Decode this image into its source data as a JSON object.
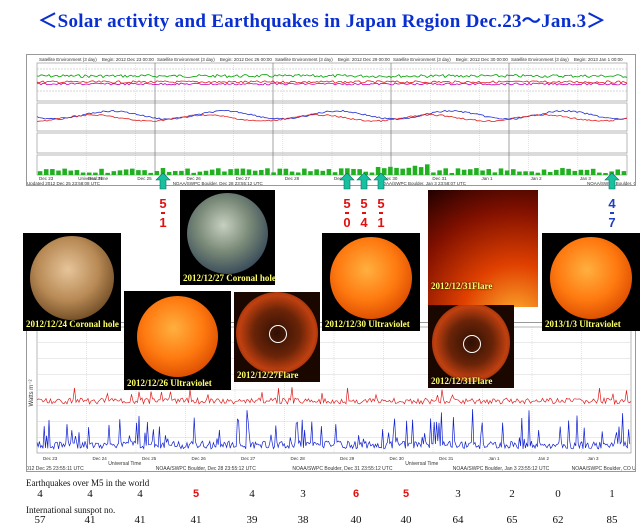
{
  "title": "＜Solar activity and Earthquakes  in Japan Region Dec.23～Jan.3＞",
  "top_chart": {
    "headers": [
      "Satellite Environment (3 day)",
      "Begin: 2012 Dec 23 00:00",
      "Satellite Environment (3 day)",
      "Begin: 2012 Dec 26 00:00",
      "Satellite Environment (3 day)",
      "Begin: 2012 Dec 29 00:00",
      "Satellite Environment (3 day)",
      "Begin: 2012 Dec 30 00:00",
      "Satellite Environment (3 day)",
      "Begin: 2013 Jan 1 00:00"
    ],
    "date_ticks": [
      "Dec 23",
      "Dec 24",
      "Dec 25",
      "Dec 26",
      "Dec 27",
      "Dec 28",
      "Dec 29",
      "Dec 30",
      "Dec 31",
      "Jan 1",
      "Jan 2",
      "Jan 3"
    ],
    "footer_left": "Updated 2012 Dec 25 23:58:08 UTC",
    "footer_mid1": "NOAA/SWPC Boulder, CO USA",
    "footer_mid2": "NOAA/SWPC Boulder, Dec 28 23:55:12 UTC",
    "footer_mid3": "NOAA/SWPC Boulder, Jan 3 23:58:07 UTC",
    "kp_label": "Universal Time"
  },
  "arrows": [
    {
      "digits": [
        "5",
        "1"
      ],
      "color": "#e01010"
    },
    {
      "digits": [
        "5",
        "0"
      ],
      "color": "#e01010"
    },
    {
      "digits": [
        "5",
        "4"
      ],
      "color": "#e01010"
    },
    {
      "digits": [
        "5",
        "1"
      ],
      "color": "#e01010"
    },
    {
      "digits": [
        "4",
        "7"
      ],
      "color": "#2040c0"
    }
  ],
  "suns": [
    {
      "label": "2012/12/24 Coronal hole"
    },
    {
      "label": "2012/12/26 Ultraviolet"
    },
    {
      "label": "2012/12/27 Coronal hole"
    },
    {
      "label": "2012/12/27Flare"
    },
    {
      "label": "2012/12/30 Ultraviolet"
    },
    {
      "label": "2012/12/31Flare"
    },
    {
      "label": "2012/12/31Flare"
    },
    {
      "label": "2013/1/3 Ultraviolet"
    }
  ],
  "xray_chart": {
    "ylabel": "Watts m⁻²",
    "date_ticks": [
      "Dec 23",
      "Dec 24",
      "Dec 25",
      "Dec 26",
      "Dec 27",
      "Dec 28",
      "Dec 29",
      "Dec 30",
      "Dec 31",
      "Jan 1",
      "Jan 2",
      "Jan 3"
    ],
    "xlabel": "Universal Time",
    "footer_left": "Updated 2012 Dec 25 23:55:11 UTC",
    "footer_mid1": "NOAA/SWPC Boulder, CO USA",
    "footer_mid2": "NOAA/SWPC Boulder, Dec 28 23:55:12 UTC",
    "footer_mid3": "NOAA/SWPC Boulder, Dec 31 23:55:12 UTC",
    "footer_mid4": "NOAA/SWPC Boulder, Jan 3 23:55:12 UTC"
  },
  "eq_label": "Earthquakes over M5 in the world",
  "eq_counts": [
    {
      "v": "4",
      "c": "#111"
    },
    {
      "v": "4",
      "c": "#111"
    },
    {
      "v": "4",
      "c": "#111"
    },
    {
      "v": "5",
      "c": "#e01010"
    },
    {
      "v": "4",
      "c": "#111"
    },
    {
      "v": "3",
      "c": "#111"
    },
    {
      "v": "6",
      "c": "#e01010"
    },
    {
      "v": "5",
      "c": "#e01010"
    },
    {
      "v": "3",
      "c": "#111"
    },
    {
      "v": "2",
      "c": "#111"
    },
    {
      "v": "0",
      "c": "#111"
    },
    {
      "v": "1",
      "c": "#111"
    }
  ],
  "sunspot_label": "International sunspot no.",
  "sunspots": [
    "57",
    "41",
    "41",
    "41",
    "39",
    "38",
    "40",
    "40",
    "64",
    "65",
    "62",
    "85"
  ]
}
